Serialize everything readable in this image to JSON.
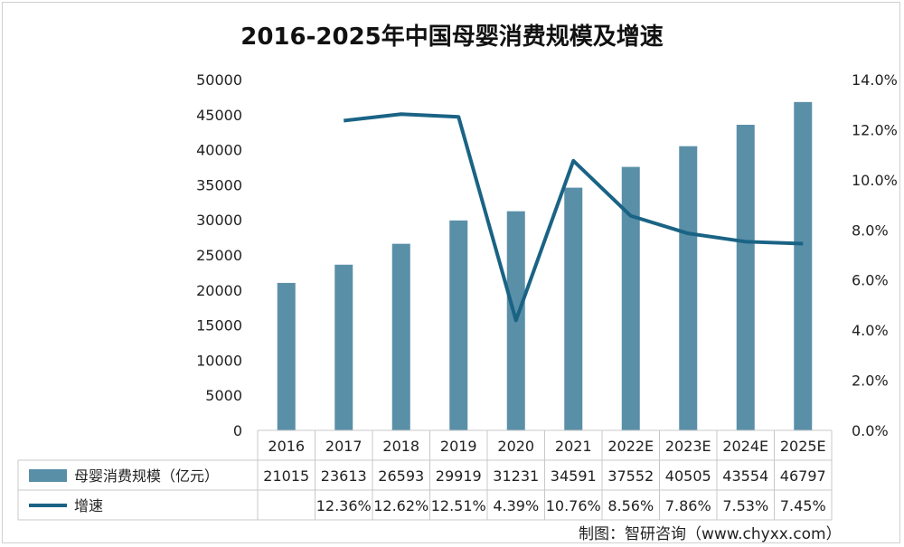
{
  "chart_data": {
    "type": "bar",
    "title": "2016-2025年中国母婴消费规模及增速",
    "categories": [
      "2016",
      "2017",
      "2018",
      "2019",
      "2020",
      "2021",
      "2022E",
      "2023E",
      "2024E",
      "2025E"
    ],
    "series": [
      {
        "name": "母婴消费规模（亿元）",
        "type": "bar",
        "color": "#5a8fa8",
        "values": [
          21015,
          23613,
          26593,
          29919,
          31231,
          34591,
          37552,
          40505,
          43554,
          46797
        ],
        "labels": [
          "21015",
          "23613",
          "26593",
          "29919",
          "31231",
          "34591",
          "37552",
          "40505",
          "43554",
          "46797"
        ]
      },
      {
        "name": "增速",
        "type": "line",
        "color": "#1a6385",
        "axis": "right",
        "values": [
          null,
          12.36,
          12.62,
          12.51,
          4.39,
          10.76,
          8.56,
          7.86,
          7.53,
          7.45
        ],
        "labels": [
          "",
          "12.36%",
          "12.62%",
          "12.51%",
          "4.39%",
          "10.76%",
          "8.56%",
          "7.86%",
          "7.53%",
          "7.45%"
        ]
      }
    ],
    "y_left": {
      "min": 0,
      "max": 50000,
      "ticks": [
        "0",
        "5000",
        "10000",
        "15000",
        "20000",
        "25000",
        "30000",
        "35000",
        "40000",
        "45000",
        "50000"
      ]
    },
    "y_right": {
      "min": 0,
      "max": 14,
      "ticks": [
        "0.0%",
        "2.0%",
        "4.0%",
        "6.0%",
        "8.0%",
        "10.0%",
        "12.0%",
        "14.0%"
      ]
    },
    "grid": false,
    "legend": "data-table"
  },
  "source": "制图：智研咨询（www.chyxx.com）"
}
